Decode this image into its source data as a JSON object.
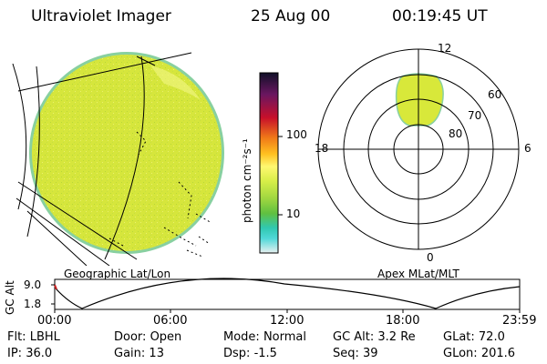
{
  "header": {
    "instrument": "Ultraviolet Imager",
    "date": "25 Aug 00",
    "time": "00:19:45 UT"
  },
  "colorbar": {
    "unit_label": "photon cm⁻²s⁻¹",
    "ticks": [
      "100",
      "10"
    ],
    "colors": [
      "#101028",
      "#6a1660",
      "#c8102a",
      "#f07818",
      "#ffc020",
      "#fff870",
      "#d8ee48",
      "#9ed640",
      "#60c040",
      "#30c8b0",
      "#50d8d8",
      "#e8f0f0"
    ]
  },
  "left_panel": {
    "caption": "Geographic Lat/Lon",
    "fill_color": "#d8e83a",
    "limb_color": "#88d0a0"
  },
  "right_panel": {
    "caption": "Apex MLat/MLT",
    "mlt_labels": {
      "top": "12",
      "bottom": "0",
      "left": "18",
      "right": "6"
    },
    "mlat_labels": [
      "60",
      "70",
      "80"
    ],
    "blob_color": "#d8e83a"
  },
  "altitude_plot": {
    "axis_label": "GC Alt",
    "y_ticks": [
      "9.0",
      "1.8"
    ],
    "x_ticks": [
      "00:00",
      "06:00",
      "12:00",
      "18:00",
      "23:59"
    ],
    "marker_color": "#cc2222"
  },
  "status": {
    "row1": [
      {
        "label": "Flt:",
        "value": "LBHL"
      },
      {
        "label": "Door:",
        "value": "Open"
      },
      {
        "label": "Mode:",
        "value": "Normal"
      },
      {
        "label": "GC Alt:",
        "value": "3.2 Re"
      },
      {
        "label": "GLat:",
        "value": "72.0"
      }
    ],
    "row2": [
      {
        "label": "IP:",
        "value": "36.0"
      },
      {
        "label": "Gain:",
        "value": "13"
      },
      {
        "label": "Dsp:",
        "value": "-1.5"
      },
      {
        "label": "Seq:",
        "value": "39"
      },
      {
        "label": "GLon:",
        "value": "201.6"
      }
    ]
  }
}
